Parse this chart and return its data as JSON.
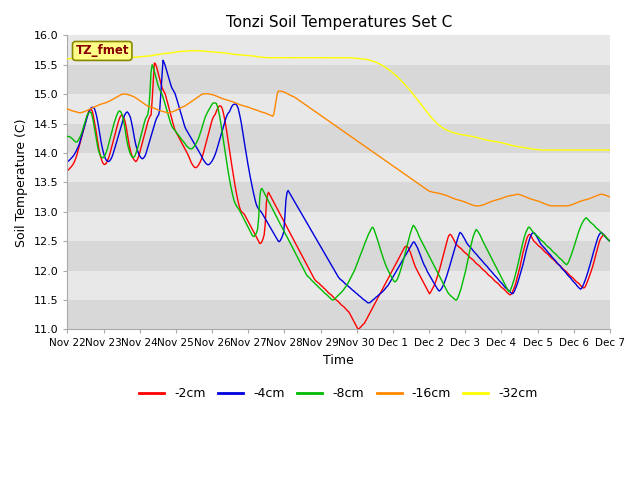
{
  "title": "Tonzi Soil Temperatures Set C",
  "xlabel": "Time",
  "ylabel": "Soil Temperature (C)",
  "ylim": [
    11.0,
    16.0
  ],
  "yticks": [
    11.0,
    11.5,
    12.0,
    12.5,
    13.0,
    13.5,
    14.0,
    14.5,
    15.0,
    15.5,
    16.0
  ],
  "x_labels": [
    "Nov 22",
    "Nov 23",
    "Nov 24",
    "Nov 25",
    "Nov 26",
    "Nov 27",
    "Nov 28",
    "Nov 29",
    "Nov 30",
    "Dec 1",
    "Dec 2",
    "Dec 3",
    "Dec 4",
    "Dec 5",
    "Dec 6",
    "Dec 7"
  ],
  "colors": {
    "neg2cm": "#ff0000",
    "neg4cm": "#0000dd",
    "neg8cm": "#00bb00",
    "neg16cm": "#ff8800",
    "neg32cm": "#ffff00"
  },
  "legend_labels": [
    "-2cm",
    "-4cm",
    "-8cm",
    "-16cm",
    "-32cm"
  ],
  "bg_color": "#ffffff",
  "plot_bg_color": "#e8e8e8",
  "stripe_color": "#d8d8d8",
  "label_box_text": "TZ_fmet",
  "label_box_facecolor": "#ffff88",
  "label_box_edgecolor": "#888800",
  "label_text_color": "#880000",
  "neg32cm_keys": [
    15.6,
    15.61,
    15.62,
    15.63,
    15.63,
    15.64,
    15.63,
    15.62,
    15.62,
    15.62,
    15.63,
    15.64,
    15.65,
    15.67,
    15.69,
    15.7,
    15.72,
    15.73,
    15.74,
    15.74,
    15.73,
    15.72,
    15.71,
    15.7,
    15.68,
    15.67,
    15.66,
    15.65,
    15.63,
    15.62,
    15.62,
    15.62,
    15.62,
    15.62,
    15.62,
    15.62,
    15.62,
    15.62,
    15.62,
    15.62,
    15.62,
    15.62,
    15.61,
    15.6,
    15.58,
    15.54,
    15.48,
    15.4,
    15.3,
    15.18,
    15.05,
    14.9,
    14.75,
    14.6,
    14.48,
    14.4,
    14.35,
    14.32,
    14.3,
    14.28,
    14.25,
    14.22,
    14.2,
    14.18,
    14.15,
    14.12,
    14.1,
    14.08,
    14.06,
    14.05,
    14.05,
    14.05,
    14.05,
    14.05,
    14.05,
    14.05,
    14.05,
    14.05,
    14.05,
    14.05
  ],
  "neg16cm_keys": [
    14.75,
    14.72,
    14.7,
    14.68,
    14.7,
    14.73,
    14.77,
    14.8,
    14.83,
    14.85,
    14.88,
    14.92,
    14.96,
    15.0,
    15.0,
    14.98,
    14.95,
    14.9,
    14.85,
    14.8,
    14.78,
    14.75,
    14.72,
    14.7,
    14.68,
    14.7,
    14.73,
    14.77,
    14.8,
    14.85,
    14.9,
    14.95,
    15.0,
    15.01,
    15.0,
    14.98,
    14.95,
    14.92,
    14.9,
    14.88,
    14.85,
    14.82,
    14.8,
    14.78,
    14.75,
    14.73,
    14.7,
    14.68,
    14.65,
    14.62,
    15.05,
    15.05,
    15.02,
    14.98,
    14.95,
    14.9,
    14.85,
    14.8,
    14.75,
    14.7,
    14.65,
    14.6,
    14.55,
    14.5,
    14.45,
    14.4,
    14.35,
    14.3,
    14.25,
    14.2,
    14.15,
    14.1,
    14.05,
    14.0,
    13.95,
    13.9,
    13.85,
    13.8,
    13.75,
    13.7,
    13.65,
    13.6,
    13.55,
    13.5,
    13.45,
    13.4,
    13.35,
    13.33,
    13.32,
    13.3,
    13.28,
    13.25,
    13.22,
    13.2,
    13.18,
    13.15,
    13.12,
    13.1,
    13.1,
    13.12,
    13.15,
    13.18,
    13.2,
    13.22,
    13.25,
    13.27,
    13.28,
    13.3,
    13.28,
    13.25,
    13.22,
    13.2,
    13.18,
    13.15,
    13.12,
    13.1,
    13.1,
    13.1,
    13.1,
    13.1,
    13.12,
    13.15,
    13.18,
    13.2,
    13.22,
    13.25,
    13.28,
    13.3,
    13.28,
    13.25
  ],
  "neg2cm_keys": [
    13.7,
    13.72,
    13.75,
    13.78,
    13.82,
    13.88,
    13.95,
    14.05,
    14.15,
    14.25,
    14.35,
    14.45,
    14.55,
    14.65,
    14.72,
    14.75,
    14.72,
    14.6,
    14.45,
    14.28,
    14.1,
    13.98,
    13.88,
    13.82,
    13.8,
    13.82,
    13.88,
    13.95,
    14.05,
    14.15,
    14.25,
    14.35,
    14.45,
    14.55,
    14.62,
    14.65,
    14.62,
    14.55,
    14.42,
    14.25,
    14.1,
    14.0,
    13.92,
    13.88,
    13.85,
    13.88,
    13.95,
    14.05,
    14.15,
    14.25,
    14.35,
    14.45,
    14.55,
    14.62,
    14.65,
    15.1,
    15.55,
    15.5,
    15.4,
    15.3,
    15.2,
    15.1,
    15.05,
    15.0,
    14.9,
    14.8,
    14.7,
    14.6,
    14.5,
    14.4,
    14.35,
    14.3,
    14.25,
    14.2,
    14.15,
    14.1,
    14.05,
    14.0,
    13.95,
    13.88,
    13.82,
    13.78,
    13.75,
    13.75,
    13.78,
    13.82,
    13.88,
    13.95,
    14.05,
    14.15,
    14.25,
    14.35,
    14.45,
    14.55,
    14.62,
    14.65,
    14.72,
    14.78,
    14.8,
    14.8,
    14.72,
    14.6,
    14.45,
    14.28,
    14.1,
    13.92,
    13.75,
    13.58,
    13.42,
    13.28,
    13.15,
    13.05,
    13.0,
    12.98,
    12.95,
    12.9,
    12.85,
    12.8,
    12.75,
    12.7,
    12.65,
    12.6,
    12.55,
    12.5,
    12.45,
    12.48,
    12.55,
    12.65,
    13.15,
    13.35,
    13.3,
    13.25,
    13.2,
    13.15,
    13.1,
    13.05,
    13.0,
    12.95,
    12.9,
    12.85,
    12.8,
    12.75,
    12.7,
    12.65,
    12.6,
    12.55,
    12.5,
    12.45,
    12.4,
    12.35,
    12.3,
    12.25,
    12.2,
    12.15,
    12.1,
    12.05,
    12.0,
    11.95,
    11.9,
    11.85,
    11.82,
    11.8,
    11.78,
    11.75,
    11.73,
    11.7,
    11.68,
    11.65,
    11.62,
    11.6,
    11.58,
    11.55,
    11.52,
    11.5,
    11.48,
    11.45,
    11.42,
    11.4,
    11.38,
    11.35,
    11.32,
    11.3,
    11.25,
    11.2,
    11.15,
    11.1,
    11.05,
    11.0,
    11.02,
    11.05,
    11.08,
    11.1,
    11.15,
    11.2,
    11.25,
    11.3,
    11.35,
    11.4,
    11.45,
    11.5,
    11.55,
    11.6,
    11.65,
    11.7,
    11.75,
    11.8,
    11.85,
    11.9,
    11.95,
    12.0,
    12.05,
    12.1,
    12.15,
    12.2,
    12.25,
    12.3,
    12.35,
    12.4,
    12.42,
    12.4,
    12.35,
    12.28,
    12.2,
    12.12,
    12.05,
    12.0,
    11.95,
    11.9,
    11.85,
    11.8,
    11.75,
    11.7,
    11.65,
    11.6,
    11.65,
    11.7,
    11.75,
    11.82,
    11.9,
    11.98,
    12.08,
    12.18,
    12.28,
    12.38,
    12.48,
    12.58,
    12.62,
    12.6,
    12.55,
    12.5,
    12.45,
    12.42,
    12.4,
    12.38,
    12.35,
    12.32,
    12.3,
    12.28,
    12.25,
    12.22,
    12.2,
    12.18,
    12.15,
    12.12,
    12.1,
    12.08,
    12.05,
    12.02,
    12.0,
    11.98,
    11.95,
    11.92,
    11.9,
    11.88,
    11.85,
    11.82,
    11.8,
    11.78,
    11.75,
    11.72,
    11.7,
    11.68,
    11.65,
    11.62,
    11.6,
    11.58,
    11.62,
    11.68,
    11.75,
    11.85,
    11.95,
    12.05,
    12.18,
    12.3,
    12.4,
    12.5,
    12.58,
    12.62,
    12.6,
    12.55,
    12.5,
    12.48,
    12.45,
    12.42,
    12.4,
    12.38,
    12.35,
    12.32,
    12.3,
    12.28,
    12.25,
    12.22,
    12.2,
    12.18,
    12.15,
    12.12,
    12.1,
    12.08,
    12.05,
    12.02,
    12.0,
    11.98,
    11.95,
    11.92,
    11.9,
    11.88,
    11.85,
    11.82,
    11.8,
    11.78,
    11.75,
    11.72,
    11.7,
    11.72,
    11.78,
    11.85,
    11.92,
    12.0,
    12.08,
    12.18,
    12.28,
    12.38,
    12.48,
    12.55,
    12.58,
    12.62,
    12.58,
    12.55,
    12.52,
    12.5
  ],
  "neg4cm_keys": [
    13.85,
    13.87,
    13.9,
    13.93,
    13.97,
    14.02,
    14.08,
    14.15,
    14.25,
    14.35,
    14.45,
    14.55,
    14.65,
    14.72,
    14.77,
    14.78,
    14.75,
    14.65,
    14.5,
    14.32,
    14.15,
    14.02,
    13.92,
    13.87,
    13.85,
    13.87,
    13.92,
    14.0,
    14.1,
    14.2,
    14.3,
    14.4,
    14.5,
    14.6,
    14.67,
    14.7,
    14.67,
    14.6,
    14.47,
    14.3,
    14.15,
    14.05,
    13.97,
    13.92,
    13.9,
    13.92,
    13.98,
    14.08,
    14.18,
    14.28,
    14.38,
    14.48,
    14.57,
    14.63,
    14.67,
    15.1,
    15.58,
    15.52,
    15.42,
    15.32,
    15.22,
    15.12,
    15.07,
    15.02,
    14.93,
    14.83,
    14.73,
    14.63,
    14.53,
    14.43,
    14.38,
    14.33,
    14.28,
    14.23,
    14.18,
    14.13,
    14.08,
    14.03,
    13.98,
    13.92,
    13.87,
    13.83,
    13.8,
    13.8,
    13.83,
    13.87,
    13.93,
    14.0,
    14.1,
    14.2,
    14.3,
    14.4,
    14.5,
    14.6,
    14.67,
    14.7,
    14.77,
    14.82,
    14.83,
    14.83,
    14.77,
    14.65,
    14.5,
    14.32,
    14.13,
    13.95,
    13.78,
    13.62,
    13.47,
    13.33,
    13.2,
    13.1,
    13.05,
    13.02,
    12.98,
    12.93,
    12.88,
    12.83,
    12.78,
    12.73,
    12.68,
    12.63,
    12.58,
    12.53,
    12.48,
    12.52,
    12.58,
    12.68,
    13.18,
    13.38,
    13.33,
    13.28,
    13.23,
    13.18,
    13.13,
    13.08,
    13.03,
    12.98,
    12.93,
    12.88,
    12.83,
    12.78,
    12.73,
    12.68,
    12.63,
    12.58,
    12.53,
    12.48,
    12.43,
    12.38,
    12.33,
    12.28,
    12.23,
    12.18,
    12.13,
    12.08,
    12.03,
    11.98,
    11.93,
    11.88,
    11.85,
    11.83,
    11.8,
    11.77,
    11.75,
    11.72,
    11.7,
    11.67,
    11.65,
    11.62,
    11.6,
    11.57,
    11.55,
    11.52,
    11.5,
    11.48,
    11.45,
    11.45,
    11.47,
    11.5,
    11.52,
    11.55,
    11.57,
    11.6,
    11.62,
    11.65,
    11.68,
    11.72,
    11.75,
    11.8,
    11.85,
    11.9,
    11.95,
    12.0,
    12.05,
    12.1,
    12.15,
    12.2,
    12.25,
    12.3,
    12.35,
    12.4,
    12.45,
    12.5,
    12.45,
    12.4,
    12.33,
    12.25,
    12.17,
    12.1,
    12.05,
    11.98,
    11.93,
    11.88,
    11.83,
    11.78,
    11.73,
    11.68,
    11.65,
    11.68,
    11.73,
    11.8,
    11.88,
    11.97,
    12.07,
    12.17,
    12.27,
    12.37,
    12.47,
    12.57,
    12.65,
    12.63,
    12.58,
    12.53,
    12.47,
    12.43,
    12.4,
    12.37,
    12.33,
    12.3,
    12.27,
    12.23,
    12.2,
    12.17,
    12.13,
    12.1,
    12.07,
    12.03,
    12.0,
    11.97,
    11.93,
    11.9,
    11.87,
    11.83,
    11.8,
    11.77,
    11.73,
    11.7,
    11.68,
    11.65,
    11.62,
    11.6,
    11.65,
    11.72,
    11.8,
    11.9,
    12.0,
    12.1,
    12.22,
    12.35,
    12.45,
    12.55,
    12.62,
    12.65,
    12.63,
    12.58,
    12.53,
    12.47,
    12.43,
    12.4,
    12.37,
    12.33,
    12.3,
    12.27,
    12.23,
    12.2,
    12.17,
    12.13,
    12.1,
    12.07,
    12.03,
    12.0,
    11.97,
    11.93,
    11.9,
    11.87,
    11.83,
    11.8,
    11.77,
    11.73,
    11.7,
    11.68,
    11.73,
    11.8,
    11.88,
    11.97,
    12.07,
    12.17,
    12.28,
    12.38,
    12.48,
    12.57,
    12.63,
    12.65,
    12.62,
    12.58,
    12.55,
    12.52,
    12.5
  ],
  "neg8cm_keys": [
    14.28,
    14.28,
    14.27,
    14.25,
    14.22,
    14.2,
    14.18,
    14.2,
    14.25,
    14.3,
    14.38,
    14.47,
    14.55,
    14.63,
    14.68,
    14.7,
    14.68,
    14.58,
    14.43,
    14.27,
    14.12,
    14.02,
    13.95,
    13.92,
    13.92,
    13.95,
    14.02,
    14.1,
    14.2,
    14.3,
    14.4,
    14.5,
    14.58,
    14.65,
    14.7,
    14.72,
    14.68,
    14.6,
    14.47,
    14.3,
    14.15,
    14.05,
    13.98,
    13.93,
    13.92,
    13.95,
    14.02,
    14.1,
    14.2,
    14.3,
    14.4,
    14.5,
    14.58,
    14.63,
    14.67,
    15.05,
    15.52,
    15.47,
    15.38,
    15.28,
    15.18,
    15.1,
    15.05,
    15.0,
    14.92,
    14.83,
    14.75,
    14.65,
    14.57,
    14.48,
    14.43,
    14.4,
    14.37,
    14.33,
    14.3,
    14.27,
    14.23,
    14.2,
    14.17,
    14.13,
    14.1,
    14.08,
    14.07,
    14.07,
    14.1,
    14.13,
    14.18,
    14.23,
    14.3,
    14.38,
    14.47,
    14.55,
    14.63,
    14.68,
    14.73,
    14.77,
    14.82,
    14.85,
    14.85,
    14.85,
    14.78,
    14.67,
    14.52,
    14.35,
    14.17,
    14.0,
    13.83,
    13.68,
    13.53,
    13.4,
    13.28,
    13.18,
    13.12,
    13.08,
    13.05,
    13.0,
    12.95,
    12.9,
    12.85,
    12.8,
    12.75,
    12.7,
    12.65,
    12.6,
    12.57,
    12.6,
    12.65,
    12.75,
    13.25,
    13.42,
    13.37,
    13.32,
    13.27,
    13.22,
    13.17,
    13.12,
    13.07,
    13.02,
    12.97,
    12.92,
    12.87,
    12.82,
    12.77,
    12.72,
    12.67,
    12.62,
    12.58,
    12.53,
    12.48,
    12.43,
    12.38,
    12.33,
    12.28,
    12.23,
    12.18,
    12.13,
    12.08,
    12.03,
    11.98,
    11.93,
    11.9,
    11.88,
    11.85,
    11.82,
    11.8,
    11.77,
    11.75,
    11.72,
    11.7,
    11.67,
    11.65,
    11.62,
    11.6,
    11.58,
    11.55,
    11.53,
    11.5,
    11.5,
    11.52,
    11.55,
    11.57,
    11.6,
    11.62,
    11.65,
    11.68,
    11.72,
    11.75,
    11.8,
    11.85,
    11.9,
    11.95,
    12.0,
    12.07,
    12.13,
    12.2,
    12.27,
    12.33,
    12.4,
    12.47,
    12.53,
    12.6,
    12.65,
    12.7,
    12.75,
    12.7,
    12.63,
    12.55,
    12.47,
    12.38,
    12.3,
    12.22,
    12.15,
    12.08,
    12.02,
    11.97,
    11.92,
    11.87,
    11.83,
    11.8,
    11.83,
    11.88,
    11.95,
    12.03,
    12.12,
    12.22,
    12.32,
    12.42,
    12.52,
    12.62,
    12.7,
    12.77,
    12.75,
    12.7,
    12.65,
    12.58,
    12.53,
    12.48,
    12.43,
    12.38,
    12.33,
    12.28,
    12.23,
    12.18,
    12.13,
    12.08,
    12.03,
    11.98,
    11.93,
    11.88,
    11.83,
    11.78,
    11.73,
    11.68,
    11.63,
    11.6,
    11.57,
    11.55,
    11.53,
    11.5,
    11.5,
    11.55,
    11.62,
    11.7,
    11.8,
    11.9,
    12.0,
    12.12,
    12.25,
    12.37,
    12.48,
    12.58,
    12.65,
    12.7,
    12.67,
    12.63,
    12.58,
    12.52,
    12.47,
    12.42,
    12.37,
    12.32,
    12.27,
    12.22,
    12.17,
    12.12,
    12.07,
    12.02,
    11.97,
    11.92,
    11.87,
    11.82,
    11.77,
    11.72,
    11.67,
    11.63,
    11.68,
    11.75,
    11.83,
    11.92,
    12.02,
    12.13,
    12.25,
    12.37,
    12.47,
    12.57,
    12.65,
    12.7,
    12.75,
    12.72,
    12.68,
    12.65,
    12.62,
    12.6,
    12.58,
    12.55,
    12.52,
    12.5,
    12.48,
    12.45,
    12.42,
    12.4,
    12.38,
    12.35,
    12.32,
    12.3,
    12.28,
    12.25,
    12.22,
    12.2,
    12.18,
    12.15,
    12.12,
    12.1,
    12.12,
    12.18,
    12.25,
    12.32,
    12.4,
    12.48,
    12.57,
    12.65,
    12.72,
    12.78,
    12.83,
    12.87,
    12.9,
    12.88,
    12.85,
    12.82,
    12.8,
    12.78,
    12.75,
    12.72,
    12.7,
    12.68,
    12.65,
    12.62,
    12.6,
    12.58,
    12.55,
    12.52,
    12.5
  ]
}
